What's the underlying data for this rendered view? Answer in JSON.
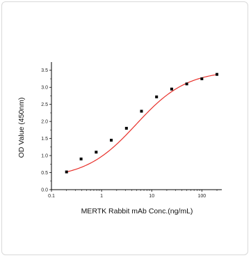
{
  "chart_data": {
    "type": "scatter",
    "title": "",
    "xlabel": "MERTK Rabbit mAb Conc.(ng/mL)",
    "ylabel": "OD Value (450nm)",
    "x_scale": "log",
    "xlim": [
      0.1,
      250
    ],
    "ylim": [
      0.0,
      3.7
    ],
    "x_ticks": [
      0.1,
      1,
      10,
      100
    ],
    "x_tick_labels": [
      "0.1",
      "1",
      "10",
      "100"
    ],
    "y_ticks": [
      0.0,
      0.5,
      1.0,
      1.5,
      2.0,
      2.5,
      3.0,
      3.5
    ],
    "y_tick_labels": [
      "0.0",
      "0.5",
      "1.0",
      "1.5",
      "2.0",
      "2.5",
      "3.0",
      "3.5"
    ],
    "grid": false,
    "legend": "none",
    "series": [
      {
        "marker": "square",
        "color": "#000000",
        "x": [
          0.2,
          0.39,
          0.78,
          1.56,
          3.13,
          6.25,
          12.5,
          25,
          50,
          100,
          200
        ],
        "y": [
          0.52,
          0.9,
          1.1,
          1.45,
          1.8,
          2.3,
          2.72,
          2.95,
          3.1,
          3.25,
          3.38
        ]
      }
    ],
    "fit_curve": {
      "type": "four-parameter logistic",
      "color": "#e8302a",
      "bottom": 0.33,
      "top": 3.5,
      "ec50": 4.9,
      "hill": 0.86
    }
  }
}
